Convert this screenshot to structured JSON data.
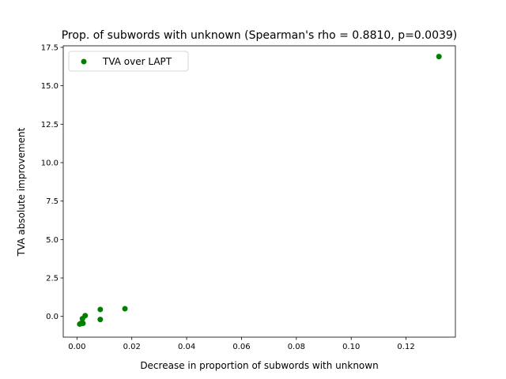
{
  "chart_data": {
    "type": "scatter",
    "title": "Prop. of subwords with unknown (Spearman's rho = 0.8810, p=0.0039)",
    "xlabel": "Decrease in proportion of subwords with unknown",
    "ylabel": "TVA absolute improvement",
    "xlim": [
      -0.005,
      0.138
    ],
    "ylim": [
      -1.35,
      17.6
    ],
    "xticks": [
      0.0,
      0.02,
      0.04,
      0.06,
      0.08,
      0.1,
      0.12
    ],
    "xtick_labels": [
      "0.00",
      "0.02",
      "0.04",
      "0.06",
      "0.08",
      "0.10",
      "0.12"
    ],
    "yticks": [
      0.0,
      2.5,
      5.0,
      7.5,
      10.0,
      12.5,
      15.0,
      17.5
    ],
    "ytick_labels": [
      "0.0",
      "2.5",
      "5.0",
      "7.5",
      "10.0",
      "12.5",
      "15.0",
      "17.5"
    ],
    "grid": false,
    "legend_position": "upper-left",
    "series": [
      {
        "name": "TVA over LAPT",
        "color": "#008000",
        "x": [
          0.001,
          0.0015,
          0.002,
          0.0022,
          0.003,
          0.0085,
          0.0085,
          0.0175,
          0.132
        ],
        "y": [
          -0.5,
          -0.45,
          -0.15,
          -0.45,
          0.05,
          0.45,
          -0.2,
          0.5,
          16.9
        ]
      }
    ]
  }
}
